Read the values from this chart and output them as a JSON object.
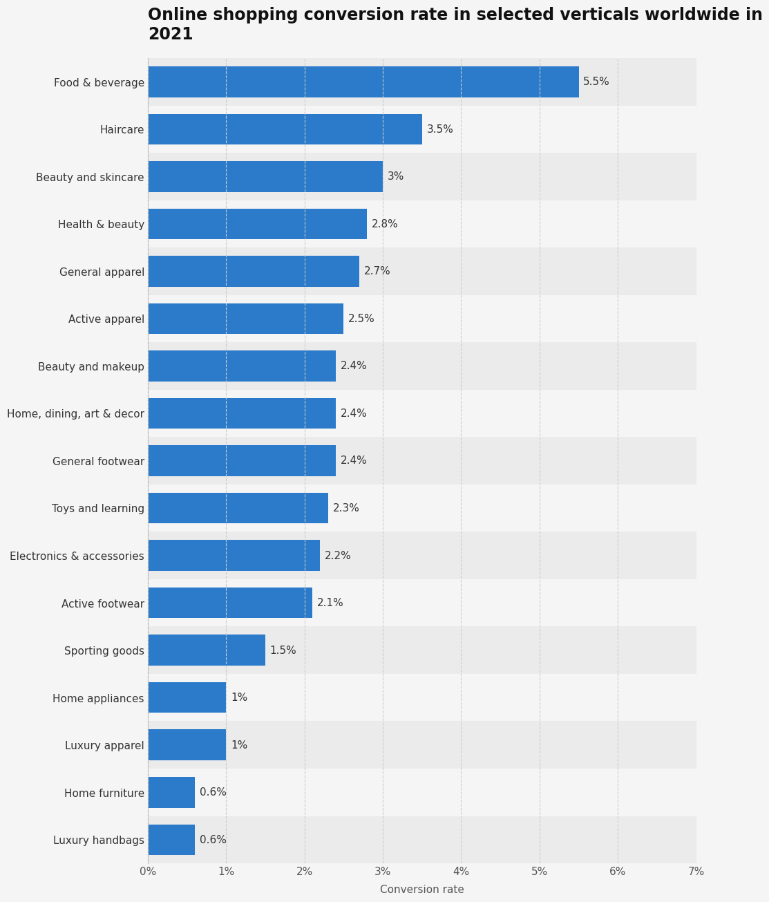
{
  "title": "Online shopping conversion rate in selected verticals worldwide in\n2021",
  "categories": [
    "Luxury handbags",
    "Home furniture",
    "Luxury apparel",
    "Home appliances",
    "Sporting goods",
    "Active footwear",
    "Electronics & accessories",
    "Toys and learning",
    "General footwear",
    "Home, dining, art & decor",
    "Beauty and makeup",
    "Active apparel",
    "General apparel",
    "Health & beauty",
    "Beauty and skincare",
    "Haircare",
    "Food & beverage"
  ],
  "values": [
    0.6,
    0.6,
    1.0,
    1.0,
    1.5,
    2.1,
    2.2,
    2.3,
    2.4,
    2.4,
    2.4,
    2.5,
    2.7,
    2.8,
    3.0,
    3.5,
    5.5
  ],
  "labels": [
    "0.6%",
    "0.6%",
    "1%",
    "1%",
    "1.5%",
    "2.1%",
    "2.2%",
    "2.3%",
    "2.4%",
    "2.4%",
    "2.4%",
    "2.5%",
    "2.7%",
    "2.8%",
    "3%",
    "3.5%",
    "5.5%"
  ],
  "bar_color": "#2b7bca",
  "background_color": "#f5f5f5",
  "row_color_odd": "#ebebeb",
  "row_color_even": "#f5f5f5",
  "xlabel": "Conversion rate",
  "xlim": [
    0,
    7
  ],
  "xticks": [
    0,
    1,
    2,
    3,
    4,
    5,
    6,
    7
  ],
  "xtick_labels": [
    "0%",
    "1%",
    "2%",
    "3%",
    "4%",
    "5%",
    "6%",
    "7%"
  ],
  "title_fontsize": 17,
  "label_fontsize": 11,
  "tick_fontsize": 11,
  "xlabel_fontsize": 11,
  "value_label_fontsize": 11
}
